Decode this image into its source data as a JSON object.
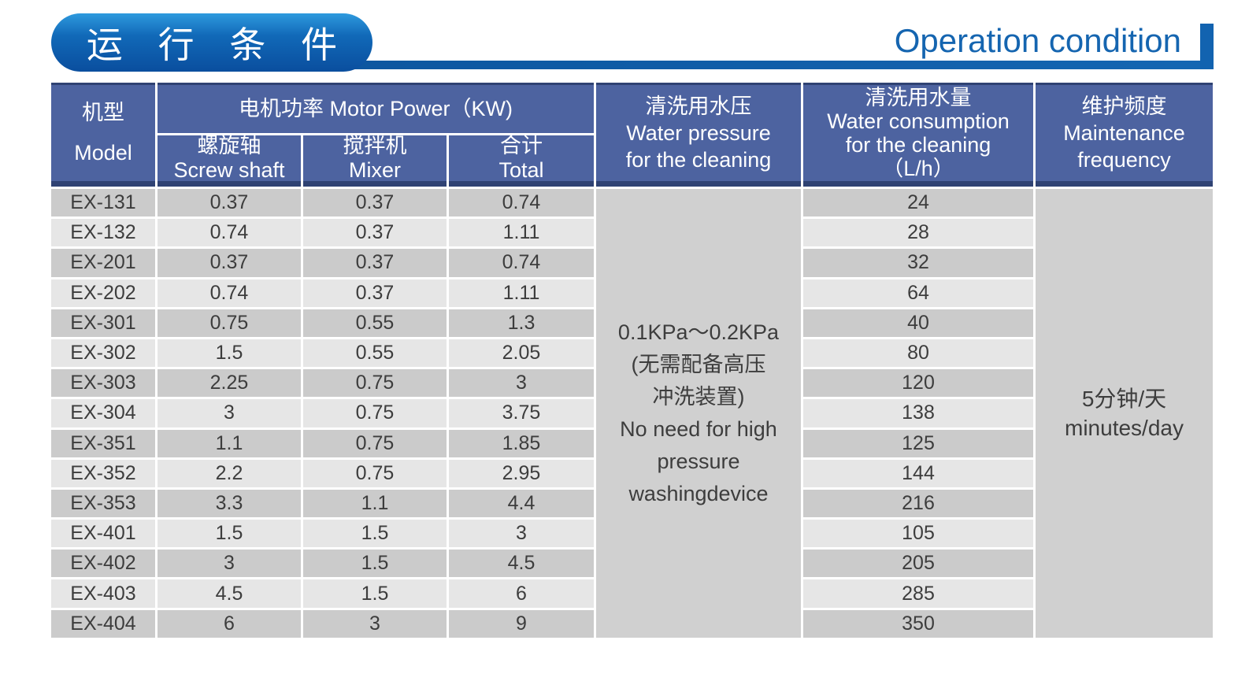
{
  "page": {
    "badge_title": "运 行 条 件",
    "title_en": "Operation condition",
    "colors": {
      "badge_blue_top": "#2e9ade",
      "badge_blue_bottom": "#0a4e9e",
      "accent_line_blue": "#1263b0",
      "title_text_blue": "#1565b0",
      "header_slate_blue": "#4d63a0",
      "header_border_navy": "#2f4273",
      "row_stripe_dark": "#cbcbcb",
      "row_stripe_light": "#e6e6e6",
      "merged_cell_gray": "#d0d0d0",
      "body_text": "#3d3d3d"
    }
  },
  "table": {
    "headers": {
      "model": [
        "机型",
        "Model"
      ],
      "motor_power": "电机功率  Motor Power（KW)",
      "screw_shaft": [
        "螺旋轴",
        "Screw shaft"
      ],
      "mixer": [
        "搅拌机",
        "Mixer"
      ],
      "total": [
        "合计",
        "Total"
      ],
      "water_pressure": [
        "清洗用水压",
        "Water pressure",
        "for the cleaning"
      ],
      "water_consumption": [
        "清洗用水量",
        "Water consumption",
        "for the cleaning",
        "（L/h）"
      ],
      "maintenance": [
        "维护频度",
        "Maintenance",
        "frequency"
      ]
    },
    "rows": [
      {
        "model": "EX-131",
        "screw_shaft": "0.37",
        "mixer": "0.37",
        "total": "0.74",
        "water_consumption": "24"
      },
      {
        "model": "EX-132",
        "screw_shaft": "0.74",
        "mixer": "0.37",
        "total": "1.11",
        "water_consumption": "28"
      },
      {
        "model": "EX-201",
        "screw_shaft": "0.37",
        "mixer": "0.37",
        "total": "0.74",
        "water_consumption": "32"
      },
      {
        "model": "EX-202",
        "screw_shaft": "0.74",
        "mixer": "0.37",
        "total": "1.11",
        "water_consumption": "64"
      },
      {
        "model": "EX-301",
        "screw_shaft": "0.75",
        "mixer": "0.55",
        "total": "1.3",
        "water_consumption": "40"
      },
      {
        "model": "EX-302",
        "screw_shaft": "1.5",
        "mixer": "0.55",
        "total": "2.05",
        "water_consumption": "80"
      },
      {
        "model": "EX-303",
        "screw_shaft": "2.25",
        "mixer": "0.75",
        "total": "3",
        "water_consumption": "120"
      },
      {
        "model": "EX-304",
        "screw_shaft": "3",
        "mixer": "0.75",
        "total": "3.75",
        "water_consumption": "138"
      },
      {
        "model": "EX-351",
        "screw_shaft": "1.1",
        "mixer": "0.75",
        "total": "1.85",
        "water_consumption": "125"
      },
      {
        "model": "EX-352",
        "screw_shaft": "2.2",
        "mixer": "0.75",
        "total": "2.95",
        "water_consumption": "144"
      },
      {
        "model": "EX-353",
        "screw_shaft": "3.3",
        "mixer": "1.1",
        "total": "4.4",
        "water_consumption": "216"
      },
      {
        "model": "EX-401",
        "screw_shaft": "1.5",
        "mixer": "1.5",
        "total": "3",
        "water_consumption": "105"
      },
      {
        "model": "EX-402",
        "screw_shaft": "3",
        "mixer": "1.5",
        "total": "4.5",
        "water_consumption": "205"
      },
      {
        "model": "EX-403",
        "screw_shaft": "4.5",
        "mixer": "1.5",
        "total": "6",
        "water_consumption": "285"
      },
      {
        "model": "EX-404",
        "screw_shaft": "6",
        "mixer": "3",
        "total": "9",
        "water_consumption": "350"
      }
    ],
    "water_pressure_note": [
      "0.1KPa～0.2KPa",
      "(无需配备高压",
      "冲洗装置)",
      "No need for high",
      "pressure",
      "washingdevice"
    ],
    "maintenance_value": [
      "5分钟/天",
      "minutes/day"
    ]
  }
}
